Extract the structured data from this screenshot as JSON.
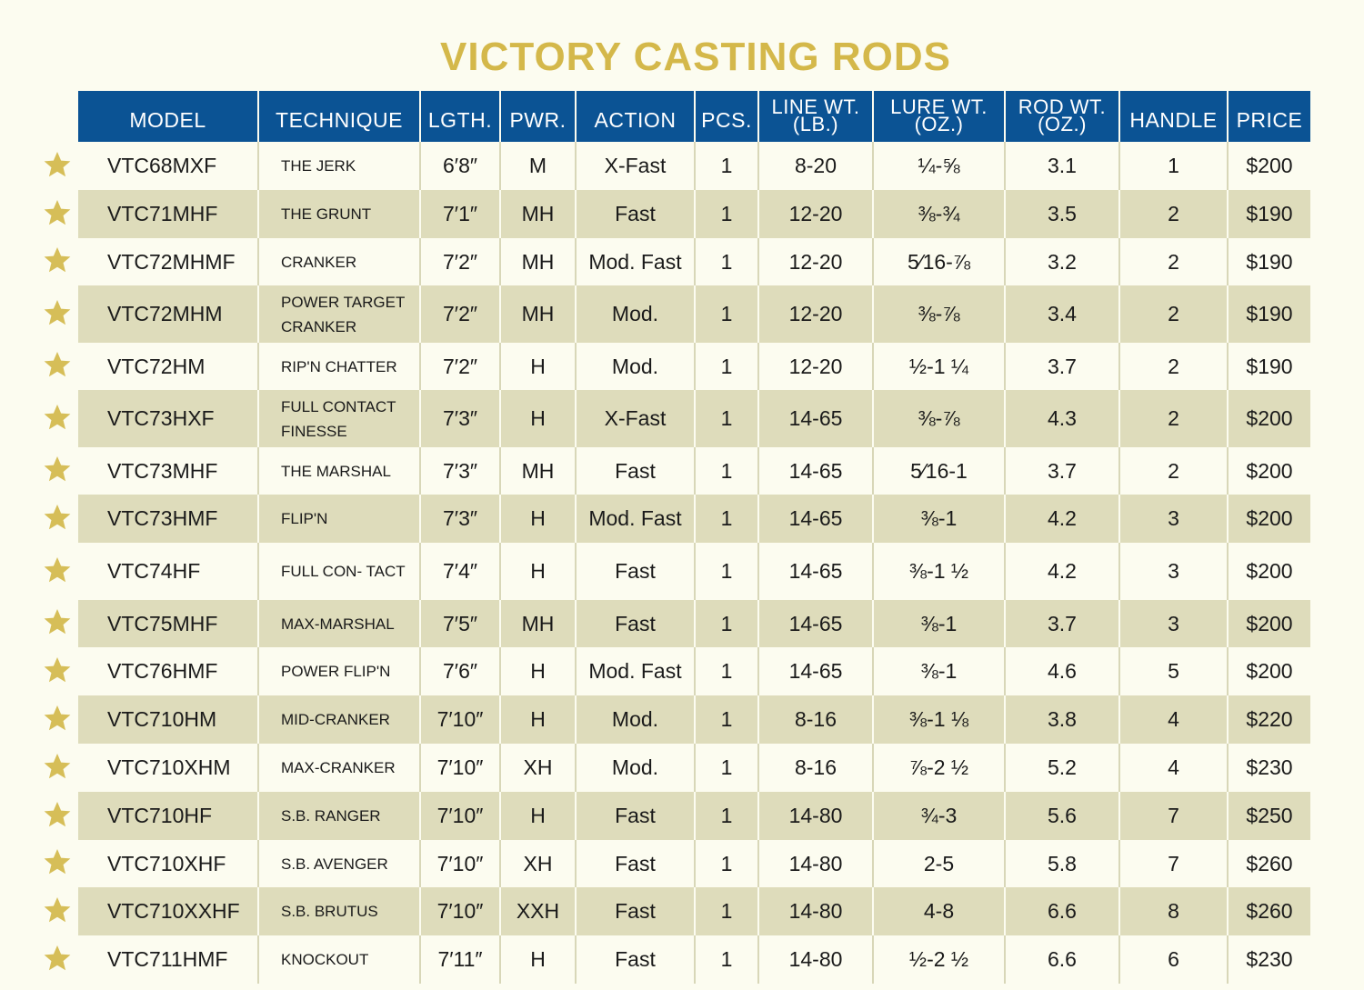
{
  "title": "VICTORY CASTING RODS",
  "colors": {
    "title": "#d4b84a",
    "header_bg": "#0b5394",
    "band": "#dedcbb",
    "star": "#d6be58"
  },
  "headers": {
    "model": "MODEL",
    "technique": "TECHNIQUE",
    "length": "LGTH.",
    "power": "PWR.",
    "action": "ACTION",
    "pieces": "PCS.",
    "line_wt_1": "LINE WT.",
    "line_wt_2": "(LB.)",
    "lure_wt_1": "LURE WT.",
    "lure_wt_2": "(OZ.)",
    "rod_wt_1": "ROD WT.",
    "rod_wt_2": "(OZ.)",
    "handle": "HANDLE",
    "price": "PRICE"
  },
  "star_icon": "star-icon",
  "rows": [
    {
      "model": "VTC68MXF",
      "technique": "THE JERK",
      "length": "6′8″",
      "power": "M",
      "action": "X-Fast",
      "pieces": "1",
      "line_wt": "8-20",
      "lure_wt": "¼-⅝",
      "rod_wt": "3.1",
      "handle": "1",
      "price": "$200"
    },
    {
      "model": "VTC71MHF",
      "technique": "THE GRUNT",
      "length": "7′1″",
      "power": "MH",
      "action": "Fast",
      "pieces": "1",
      "line_wt": "12-20",
      "lure_wt": "⅜-¾",
      "rod_wt": "3.5",
      "handle": "2",
      "price": "$190"
    },
    {
      "model": "VTC72MHMF",
      "technique": "CRANKER",
      "length": "7′2″",
      "power": "MH",
      "action": "Mod. Fast",
      "pieces": "1",
      "line_wt": "12-20",
      "lure_wt": "5⁄16-⅞",
      "rod_wt": "3.2",
      "handle": "2",
      "price": "$190"
    },
    {
      "model": "VTC72MHM",
      "technique": "POWER TARGET CRANKER",
      "length": "7′2″",
      "power": "MH",
      "action": "Mod.",
      "pieces": "1",
      "line_wt": "12-20",
      "lure_wt": "⅜-⅞",
      "rod_wt": "3.4",
      "handle": "2",
      "price": "$190"
    },
    {
      "model": "VTC72HM",
      "technique": "RIP'N CHATTER",
      "length": "7′2″",
      "power": "H",
      "action": "Mod.",
      "pieces": "1",
      "line_wt": "12-20",
      "lure_wt": "½-1 ¼",
      "rod_wt": "3.7",
      "handle": "2",
      "price": "$190"
    },
    {
      "model": "VTC73HXF",
      "technique": "FULL CONTACT FINESSE",
      "length": "7′3″",
      "power": "H",
      "action": "X-Fast",
      "pieces": "1",
      "line_wt": "14-65",
      "lure_wt": "⅜-⅞",
      "rod_wt": "4.3",
      "handle": "2",
      "price": "$200"
    },
    {
      "model": "VTC73MHF",
      "technique": "THE MARSHAL",
      "length": "7′3″",
      "power": "MH",
      "action": "Fast",
      "pieces": "1",
      "line_wt": "14-65",
      "lure_wt": "5⁄16-1",
      "rod_wt": "3.7",
      "handle": "2",
      "price": "$200"
    },
    {
      "model": "VTC73HMF",
      "technique": "FLIP'N",
      "length": "7′3″",
      "power": "H",
      "action": "Mod. Fast",
      "pieces": "1",
      "line_wt": "14-65",
      "lure_wt": "⅜-1",
      "rod_wt": "4.2",
      "handle": "3",
      "price": "$200"
    },
    {
      "model": "VTC74HF",
      "technique": "FULL CON- TACT",
      "length": "7′4″",
      "power": "H",
      "action": "Fast",
      "pieces": "1",
      "line_wt": "14-65",
      "lure_wt": "⅜-1 ½",
      "rod_wt": "4.2",
      "handle": "3",
      "price": "$200"
    },
    {
      "model": "VTC75MHF",
      "technique": "MAX-MARSHAL",
      "length": "7′5″",
      "power": "MH",
      "action": "Fast",
      "pieces": "1",
      "line_wt": "14-65",
      "lure_wt": "⅜-1",
      "rod_wt": "3.7",
      "handle": "3",
      "price": "$200"
    },
    {
      "model": "VTC76HMF",
      "technique": "POWER FLIP'N",
      "length": "7′6″",
      "power": "H",
      "action": "Mod. Fast",
      "pieces": "1",
      "line_wt": "14-65",
      "lure_wt": "⅜-1",
      "rod_wt": "4.6",
      "handle": "5",
      "price": "$200"
    },
    {
      "model": "VTC710HM",
      "technique": "MID-CRANKER",
      "length": "7′10″",
      "power": "H",
      "action": "Mod.",
      "pieces": "1",
      "line_wt": "8-16",
      "lure_wt": "⅜-1 ⅛",
      "rod_wt": "3.8",
      "handle": "4",
      "price": "$220"
    },
    {
      "model": "VTC710XHM",
      "technique": "MAX-CRANKER",
      "length": "7′10″",
      "power": "XH",
      "action": "Mod.",
      "pieces": "1",
      "line_wt": "8-16",
      "lure_wt": "⅞-2 ½",
      "rod_wt": "5.2",
      "handle": "4",
      "price": "$230"
    },
    {
      "model": "VTC710HF",
      "technique": "S.B. RANGER",
      "length": "7′10″",
      "power": "H",
      "action": "Fast",
      "pieces": "1",
      "line_wt": "14-80",
      "lure_wt": "¾-3",
      "rod_wt": "5.6",
      "handle": "7",
      "price": "$250"
    },
    {
      "model": "VTC710XHF",
      "technique": "S.B. AVENGER",
      "length": "7′10″",
      "power": "XH",
      "action": "Fast",
      "pieces": "1",
      "line_wt": "14-80",
      "lure_wt": "2-5",
      "rod_wt": "5.8",
      "handle": "7",
      "price": "$260"
    },
    {
      "model": "VTC710XXHF",
      "technique": "S.B. BRUTUS",
      "length": "7′10″",
      "power": "XXH",
      "action": "Fast",
      "pieces": "1",
      "line_wt": "14-80",
      "lure_wt": "4-8",
      "rod_wt": "6.6",
      "handle": "8",
      "price": "$260"
    },
    {
      "model": "VTC711HMF",
      "technique": "KNOCKOUT",
      "length": "7′11″",
      "power": "H",
      "action": "Fast",
      "pieces": "1",
      "line_wt": "14-80",
      "lure_wt": "½-2 ½",
      "rod_wt": "6.6",
      "handle": "6",
      "price": "$230"
    }
  ]
}
